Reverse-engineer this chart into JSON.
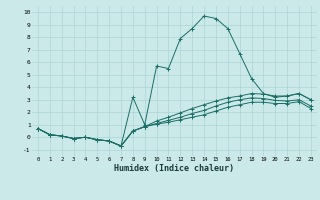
{
  "title": "",
  "xlabel": "Humidex (Indice chaleur)",
  "bg_color": "#cce9ea",
  "grid_color": "#aad4d6",
  "line_color": "#1a6e65",
  "xlim": [
    -0.5,
    23.5
  ],
  "ylim": [
    -1.5,
    10.5
  ],
  "xticks": [
    0,
    1,
    2,
    3,
    4,
    5,
    6,
    7,
    8,
    9,
    10,
    11,
    12,
    13,
    14,
    15,
    16,
    17,
    18,
    19,
    20,
    21,
    22,
    23
  ],
  "yticks": [
    -1,
    0,
    1,
    2,
    3,
    4,
    5,
    6,
    7,
    8,
    9,
    10
  ],
  "series": [
    [
      0.7,
      0.2,
      0.1,
      -0.1,
      0.0,
      -0.2,
      -0.3,
      -0.7,
      3.2,
      1.0,
      5.7,
      5.5,
      7.9,
      8.7,
      9.7,
      9.5,
      8.7,
      6.7,
      4.7,
      3.5,
      3.2,
      3.3,
      3.5,
      3.0
    ],
    [
      0.7,
      0.2,
      0.1,
      -0.1,
      0.0,
      -0.2,
      -0.3,
      -0.7,
      0.5,
      0.85,
      1.3,
      1.6,
      1.95,
      2.3,
      2.6,
      2.9,
      3.15,
      3.3,
      3.5,
      3.45,
      3.3,
      3.3,
      3.5,
      3.0
    ],
    [
      0.7,
      0.2,
      0.1,
      -0.1,
      0.0,
      -0.2,
      -0.3,
      -0.7,
      0.5,
      0.85,
      1.1,
      1.35,
      1.6,
      1.9,
      2.15,
      2.5,
      2.8,
      3.0,
      3.15,
      3.1,
      2.95,
      2.9,
      3.0,
      2.5
    ],
    [
      0.7,
      0.2,
      0.1,
      -0.1,
      0.0,
      -0.2,
      -0.3,
      -0.7,
      0.5,
      0.85,
      1.05,
      1.2,
      1.4,
      1.6,
      1.8,
      2.1,
      2.4,
      2.6,
      2.8,
      2.8,
      2.7,
      2.7,
      2.85,
      2.3
    ]
  ]
}
